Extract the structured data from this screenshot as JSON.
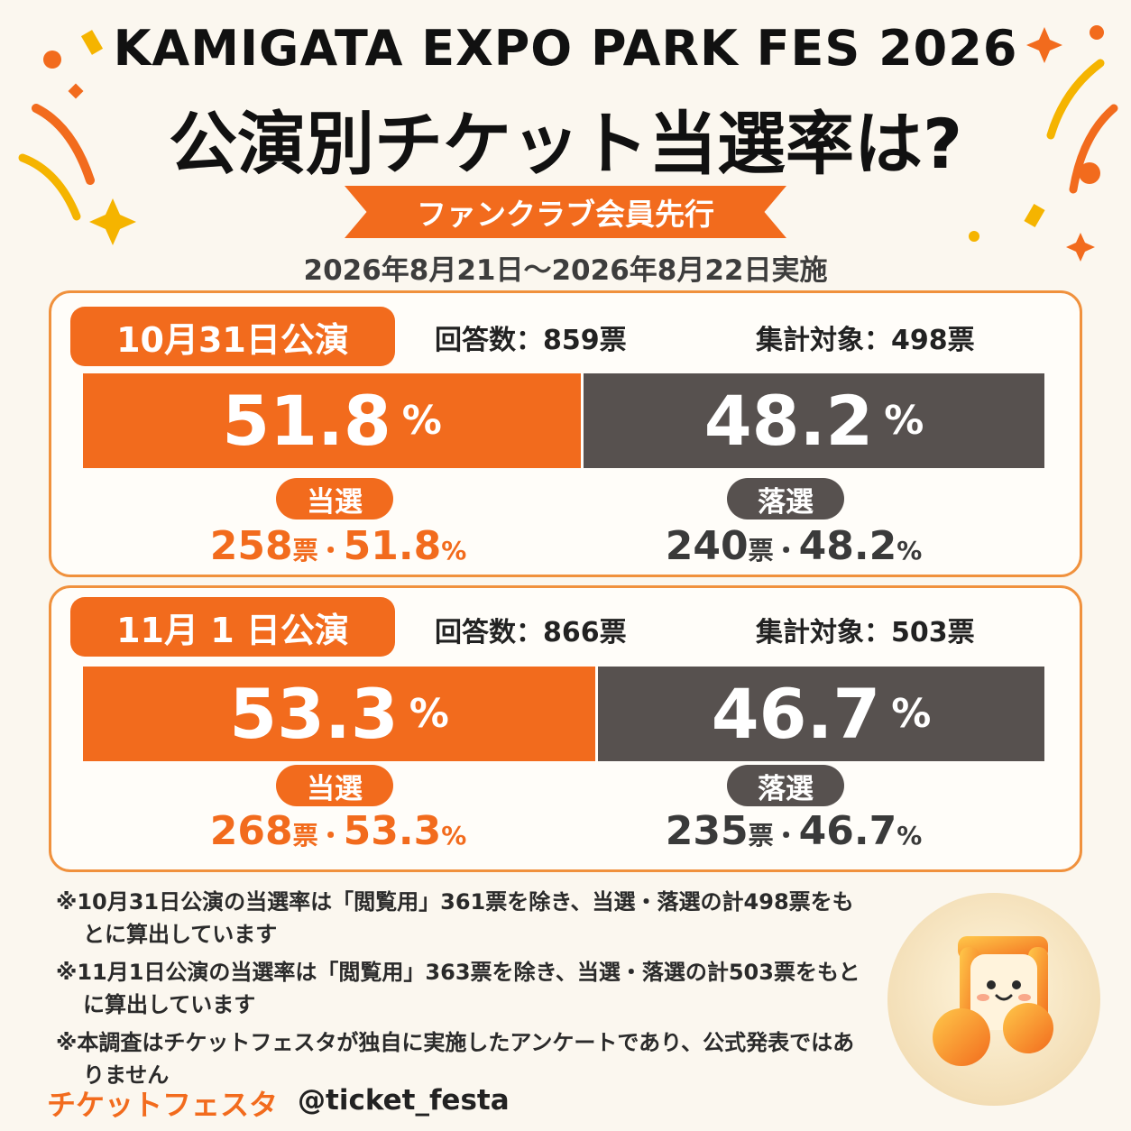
{
  "header": {
    "title_en": "KAMIGATA EXPO PARK FES 2026",
    "title_jp": "公演別チケット当選率は?",
    "ribbon": "ファンクラブ会員先行",
    "date_range": "2026年8月21日～2026年8月22日実施"
  },
  "colors": {
    "win": "#f26b1d",
    "lose": "#57514f",
    "panel_border": "#f0913d",
    "background": "#fbf7ef"
  },
  "performances": [
    {
      "label": "10月31日公演",
      "responses": "回答数：859票",
      "counted": "集計対象：498票",
      "win_pct": "51.8",
      "lose_pct": "48.2",
      "pct_unit": "%",
      "win_label": "当選",
      "lose_label": "落選",
      "win_votes": "258",
      "lose_votes": "240",
      "vote_unit": "票",
      "sep": "・"
    },
    {
      "label": "11月 1 日公演",
      "responses": "回答数：866票",
      "counted": "集計対象：503票",
      "win_pct": "53.3",
      "lose_pct": "46.7",
      "pct_unit": "%",
      "win_label": "当選",
      "lose_label": "落選",
      "win_votes": "268",
      "lose_votes": "235",
      "vote_unit": "票",
      "sep": "・"
    }
  ],
  "chart_data": {
    "type": "bar",
    "stacked": true,
    "orientation": "horizontal",
    "categories": [
      "10月31日公演",
      "11月 1 日公演"
    ],
    "series": [
      {
        "name": "当選",
        "values": [
          51.8,
          53.3
        ],
        "counts": [
          258,
          268
        ]
      },
      {
        "name": "落選",
        "values": [
          48.2,
          46.7
        ],
        "counts": [
          240,
          235
        ]
      }
    ],
    "ylim": [
      0,
      100
    ]
  },
  "notes": [
    "※10月31日公演の当選率は「閲覧用」361票を除き、当選・落選の計498票をもとに算出しています",
    "※11月1日公演の当選率は「閲覧用」363票を除き、当選・落選の計503票をもとに算出しています",
    "※本調査はチケットフェスタが独自に実施したアンケートであり、公式発表ではありません"
  ],
  "footer": {
    "brand": "チケットフェスタ",
    "handle": "@ticket_festa"
  },
  "mascot_icon": "music-note-mascot-icon"
}
